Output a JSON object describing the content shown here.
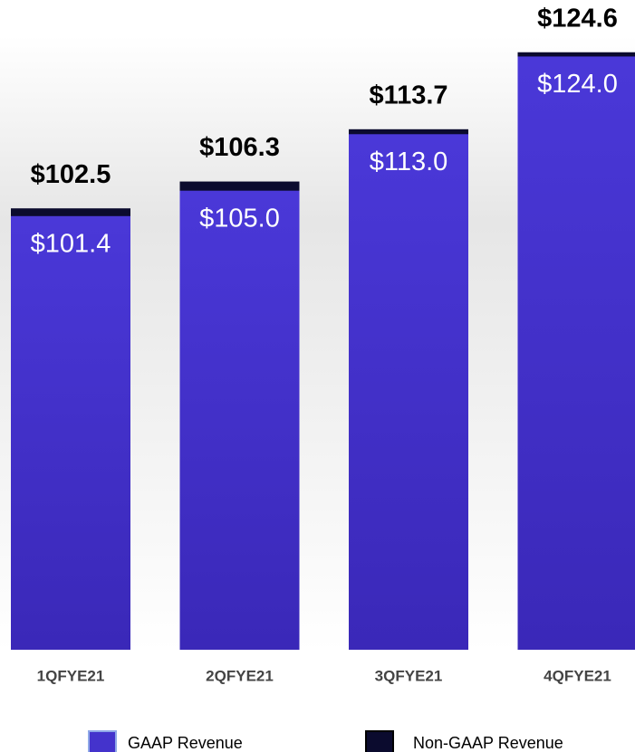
{
  "chart_data": {
    "type": "bar",
    "stacked": false,
    "categories": [
      "1QFYE21",
      "2QFYE21",
      "3QFYE21",
      "4QFYE21"
    ],
    "series": [
      {
        "name": "Non-GAAP Revenue",
        "color": "#0b0b2e",
        "values": [
          102.5,
          106.3,
          113.7,
          124.6
        ],
        "value_labels": [
          "$102.5",
          "$106.3",
          "$113.7",
          "$124.6"
        ]
      },
      {
        "name": "GAAP Revenue",
        "color": "#4433cc",
        "values": [
          101.4,
          105.0,
          113.0,
          124.0
        ],
        "value_labels": [
          "$101.4",
          "$105.0",
          "$113.0",
          "$124.0"
        ]
      }
    ],
    "ylim": [
      40,
      132
    ]
  }
}
